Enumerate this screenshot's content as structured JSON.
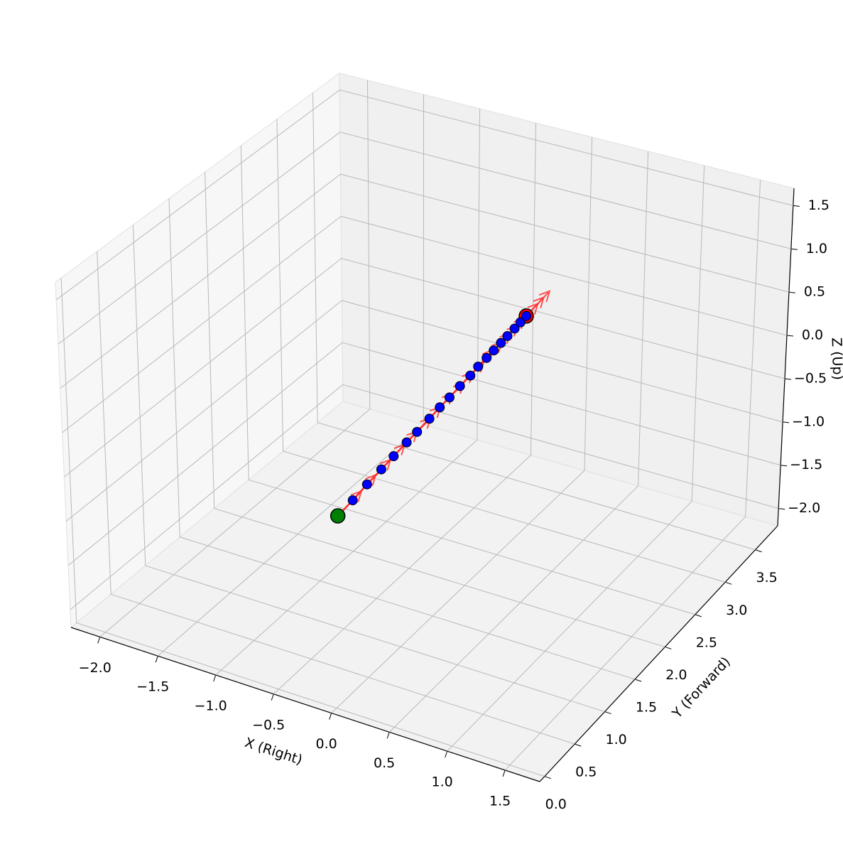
{
  "chart_data": {
    "type": "trajectory3d",
    "xlabel": "X (Right)",
    "ylabel": "Y (Forward)",
    "zlabel": "Z (Up)",
    "x": [
      0,
      0,
      0,
      0,
      0,
      0,
      0,
      0,
      0,
      0,
      0,
      0,
      0,
      0,
      0,
      0,
      0,
      0,
      0,
      0
    ],
    "y": [
      0,
      0.23,
      0.45,
      0.67,
      0.86,
      1.06,
      1.22,
      1.41,
      1.57,
      1.72,
      1.88,
      2.04,
      2.16,
      2.29,
      2.4,
      2.51,
      2.61,
      2.72,
      2.81,
      2.9
    ],
    "z": [
      0,
      0.02,
      0.05,
      0.07,
      0.09,
      0.11,
      0.12,
      0.14,
      0.16,
      0.17,
      0.19,
      0.2,
      0.22,
      0.23,
      0.24,
      0.25,
      0.26,
      0.27,
      0.28,
      0.29
    ],
    "xlim": [
      -2.25,
      1.8
    ],
    "ylim": [
      -0.08,
      3.87
    ],
    "zlim": [
      -2.2,
      1.7
    ],
    "xticks": [
      {
        "value": -2,
        "label": "−2.0"
      },
      {
        "value": -1.5,
        "label": "−1.5"
      },
      {
        "value": -1,
        "label": "−1.0"
      },
      {
        "value": -0.5,
        "label": "−0.5"
      },
      {
        "value": 0,
        "label": "0.0"
      },
      0.5,
      {
        "value": 1,
        "label": "1.0"
      },
      1.5
    ],
    "yticks": [
      {
        "value": 0,
        "label": "0.0"
      },
      0.5,
      {
        "value": 1,
        "label": "1.0"
      },
      1.5,
      {
        "value": 2,
        "label": "2.0"
      },
      2.5,
      {
        "value": 3,
        "label": "3.0"
      },
      3.5
    ],
    "zticks": [
      {
        "value": -2,
        "label": "−2.0"
      },
      {
        "value": -1.5,
        "label": "−1.5"
      },
      {
        "value": -1,
        "label": "−1.0"
      },
      {
        "value": -0.5,
        "label": "−0.5"
      },
      {
        "value": 0,
        "label": "0.0"
      },
      0.5,
      {
        "value": 1,
        "label": "1.0"
      },
      1.5
    ],
    "color": "#0000ff",
    "start_color": "#008000",
    "end_color": "#ff0000",
    "arrow_color": "#ff2a2a",
    "grid": true
  }
}
